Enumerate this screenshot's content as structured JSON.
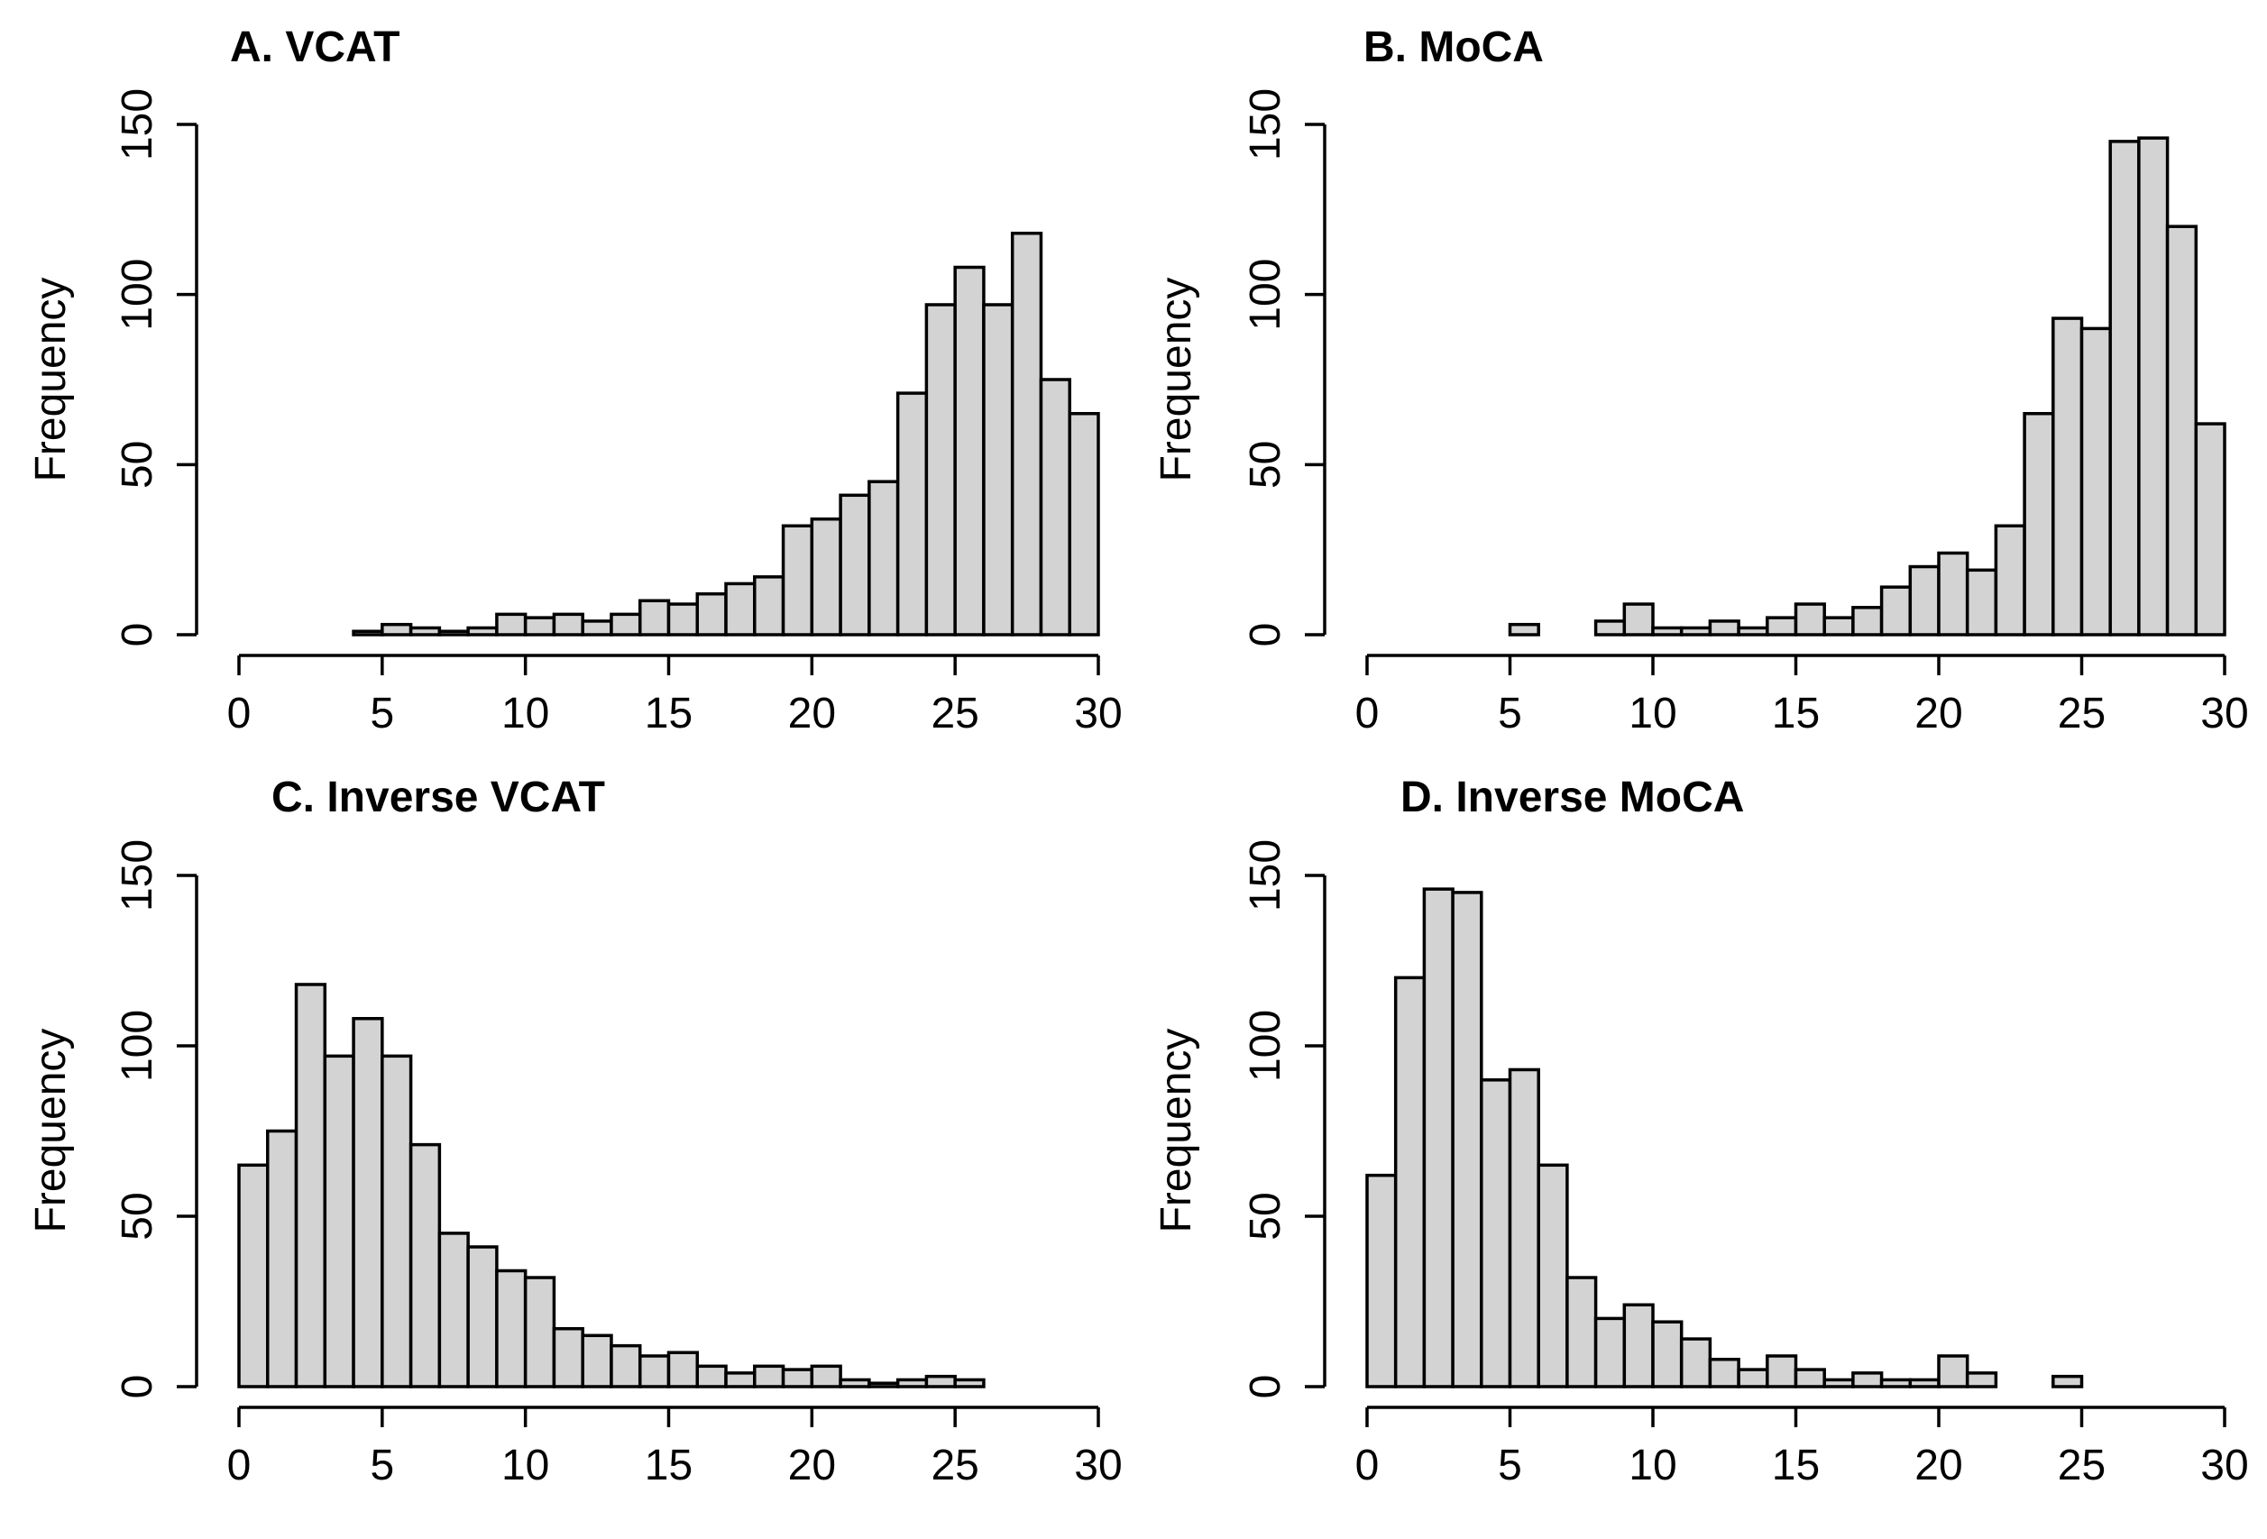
{
  "colors": {
    "bar_fill": "#d3d3d3",
    "bar_stroke": "#000000",
    "background": "#ffffff"
  },
  "chart_data": [
    {
      "type": "bar",
      "panel": "A",
      "title": "A. VCAT",
      "xlabel": "",
      "ylabel": "Frequency",
      "xlim": [
        0,
        30
      ],
      "ylim": [
        0,
        150
      ],
      "bin_width": 1,
      "x_ticks": [
        0,
        5,
        10,
        15,
        20,
        25,
        30
      ],
      "x_tick_labels": [
        "0",
        "5",
        "10",
        "15",
        "20",
        "25",
        "30"
      ],
      "y_ticks": [
        0,
        50,
        100,
        150
      ],
      "y_tick_labels": [
        "0",
        "50",
        "100",
        "150"
      ],
      "bin_starts": [
        0,
        1,
        2,
        3,
        4,
        5,
        6,
        7,
        8,
        9,
        10,
        11,
        12,
        13,
        14,
        15,
        16,
        17,
        18,
        19,
        20,
        21,
        22,
        23,
        24,
        25,
        26,
        27,
        28,
        29
      ],
      "values": [
        0,
        0,
        0,
        0,
        1,
        3,
        2,
        1,
        2,
        6,
        5,
        6,
        4,
        6,
        10,
        9,
        12,
        15,
        17,
        32,
        34,
        41,
        45,
        71,
        97,
        108,
        97,
        118,
        75,
        65
      ]
    },
    {
      "type": "bar",
      "panel": "B",
      "title": "B. MoCA",
      "xlabel": "",
      "ylabel": "Frequency",
      "xlim": [
        0,
        30
      ],
      "ylim": [
        0,
        150
      ],
      "bin_width": 1,
      "x_ticks": [
        0,
        5,
        10,
        15,
        20,
        25,
        30
      ],
      "x_tick_labels": [
        "0",
        "5",
        "10",
        "15",
        "20",
        "25",
        "30"
      ],
      "y_ticks": [
        0,
        50,
        100,
        150
      ],
      "y_tick_labels": [
        "0",
        "50",
        "100",
        "150"
      ],
      "bin_starts": [
        0,
        1,
        2,
        3,
        4,
        5,
        6,
        7,
        8,
        9,
        10,
        11,
        12,
        13,
        14,
        15,
        16,
        17,
        18,
        19,
        20,
        21,
        22,
        23,
        24,
        25,
        26,
        27,
        28,
        29
      ],
      "values": [
        0,
        0,
        0,
        0,
        0,
        3,
        0,
        0,
        4,
        9,
        2,
        2,
        4,
        2,
        5,
        9,
        5,
        8,
        14,
        20,
        24,
        19,
        32,
        65,
        93,
        90,
        145,
        146,
        120,
        62
      ]
    },
    {
      "type": "bar",
      "panel": "C",
      "title": "C. Inverse VCAT",
      "xlabel": "",
      "ylabel": "Frequency",
      "xlim": [
        0,
        30
      ],
      "ylim": [
        0,
        150
      ],
      "bin_width": 1,
      "x_ticks": [
        0,
        5,
        10,
        15,
        20,
        25,
        30
      ],
      "x_tick_labels": [
        "0",
        "5",
        "10",
        "15",
        "20",
        "25",
        "30"
      ],
      "y_ticks": [
        0,
        50,
        100,
        150
      ],
      "y_tick_labels": [
        "0",
        "50",
        "100",
        "150"
      ],
      "bin_starts": [
        0,
        1,
        2,
        3,
        4,
        5,
        6,
        7,
        8,
        9,
        10,
        11,
        12,
        13,
        14,
        15,
        16,
        17,
        18,
        19,
        20,
        21,
        22,
        23,
        24,
        25,
        26,
        27,
        28,
        29
      ],
      "values": [
        65,
        75,
        118,
        97,
        108,
        97,
        71,
        45,
        41,
        34,
        32,
        17,
        15,
        12,
        9,
        10,
        6,
        4,
        6,
        5,
        6,
        2,
        1,
        2,
        3,
        2,
        0,
        0,
        0,
        0
      ]
    },
    {
      "type": "bar",
      "panel": "D",
      "title": "D. Inverse MoCA",
      "xlabel": "",
      "ylabel": "Frequency",
      "xlim": [
        0,
        30
      ],
      "ylim": [
        0,
        150
      ],
      "bin_width": 1,
      "x_ticks": [
        0,
        5,
        10,
        15,
        20,
        25,
        30
      ],
      "x_tick_labels": [
        "0",
        "5",
        "10",
        "15",
        "20",
        "25",
        "30"
      ],
      "y_ticks": [
        0,
        50,
        100,
        150
      ],
      "y_tick_labels": [
        "0",
        "50",
        "100",
        "150"
      ],
      "bin_starts": [
        0,
        1,
        2,
        3,
        4,
        5,
        6,
        7,
        8,
        9,
        10,
        11,
        12,
        13,
        14,
        15,
        16,
        17,
        18,
        19,
        20,
        21,
        22,
        23,
        24,
        25,
        26,
        27,
        28,
        29
      ],
      "values": [
        62,
        120,
        146,
        145,
        90,
        93,
        65,
        32,
        20,
        24,
        19,
        14,
        8,
        5,
        9,
        5,
        2,
        4,
        2,
        2,
        9,
        4,
        0,
        0,
        3,
        0,
        0,
        0,
        0,
        0
      ]
    }
  ]
}
